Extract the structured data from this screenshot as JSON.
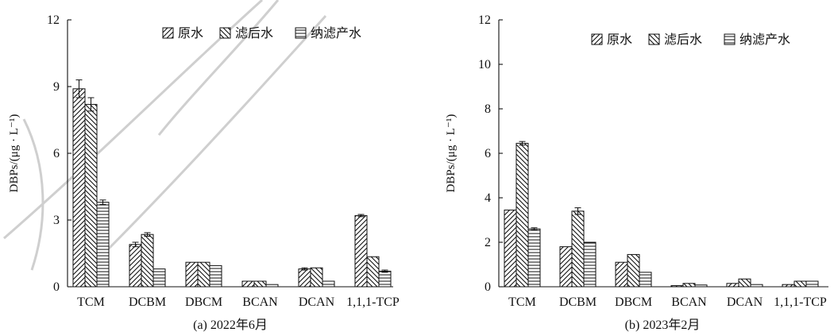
{
  "chart_data": [
    {
      "type": "bar",
      "caption": "(a) 2022年6月",
      "ylabel": "DBPs/(μg · L⁻¹)",
      "ylim": [
        0,
        12
      ],
      "yticks": [
        0,
        3,
        6,
        9,
        12
      ],
      "categories": [
        "TCM",
        "DCBM",
        "DBCM",
        "BCAN",
        "DCAN",
        "1,1,1-TCP"
      ],
      "legend_position": "top-right",
      "series": [
        {
          "name": "原水",
          "pattern": "diag-up",
          "values": [
            8.9,
            1.9,
            1.1,
            0.25,
            0.8,
            3.2
          ],
          "errors": [
            0.4,
            0.1,
            0,
            0,
            0.05,
            0.05
          ]
        },
        {
          "name": "滤后水",
          "pattern": "diag-down",
          "values": [
            8.2,
            2.35,
            1.1,
            0.25,
            0.85,
            1.35
          ],
          "errors": [
            0.3,
            0.08,
            0,
            0,
            0,
            0
          ]
        },
        {
          "name": "纳滤产水",
          "pattern": "horizontal",
          "values": [
            3.8,
            0.8,
            0.95,
            0.1,
            0.25,
            0.7
          ],
          "errors": [
            0.1,
            0,
            0,
            0,
            0,
            0.05
          ]
        }
      ]
    },
    {
      "type": "bar",
      "caption": "(b) 2023年2月",
      "ylabel": "DBPs/(μg · L⁻¹)",
      "ylim": [
        0,
        12
      ],
      "yticks": [
        0,
        2,
        4,
        6,
        8,
        10,
        12
      ],
      "categories": [
        "TCM",
        "DCBM",
        "DBCM",
        "BCAN",
        "DCAN",
        "1,1,1-TCP"
      ],
      "legend_position": "top-right",
      "series": [
        {
          "name": "原水",
          "pattern": "diag-up",
          "values": [
            3.45,
            1.8,
            1.1,
            0.05,
            0.15,
            0.1
          ],
          "errors": [
            0,
            0,
            0,
            0,
            0,
            0
          ]
        },
        {
          "name": "滤后水",
          "pattern": "diag-down",
          "values": [
            6.45,
            3.4,
            1.45,
            0.15,
            0.35,
            0.25
          ],
          "errors": [
            0.08,
            0.15,
            0,
            0,
            0,
            0
          ]
        },
        {
          "name": "纳滤产水",
          "pattern": "horizontal",
          "values": [
            2.6,
            2.0,
            0.65,
            0.08,
            0.1,
            0.25
          ],
          "errors": [
            0.05,
            0,
            0,
            0,
            0,
            0
          ]
        }
      ]
    }
  ]
}
